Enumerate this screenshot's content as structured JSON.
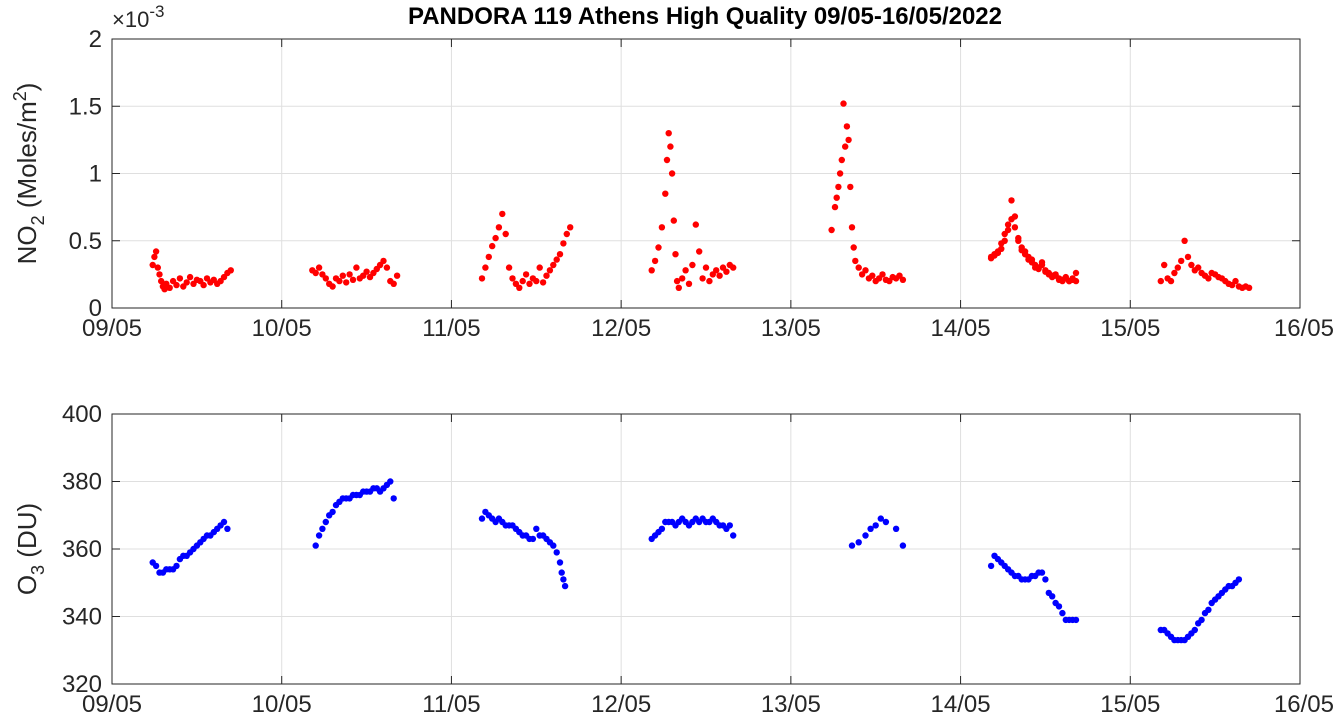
{
  "figure": {
    "title": "PANDORA 119 Athens High Quality 09/05-16/05/2022"
  },
  "chart_data": [
    {
      "type": "scatter",
      "ylabel": "NO₂ (Moles/m²)",
      "ylabel_main": "NO",
      "ylabel_sub": "2",
      "ylabel_rest": " (Moles/m",
      "ylabel_sup": "2",
      "ylabel_end": ")",
      "exponent_label": "×10",
      "exponent_sup": "-3",
      "x_ticks": [
        "09/05",
        "10/05",
        "11/05",
        "12/05",
        "13/05",
        "14/05",
        "15/05",
        "16/05"
      ],
      "xlim_days": [
        0,
        7
      ],
      "y_ticks": [
        "0",
        "0.5",
        "1",
        "1.5",
        "2"
      ],
      "ylim": [
        0,
        2
      ],
      "grid": true,
      "color": "#ff0000",
      "series": [
        {
          "x": [
            0.24,
            0.25,
            0.26,
            0.27,
            0.28,
            0.29,
            0.3,
            0.31,
            0.32,
            0.34,
            0.36,
            0.38,
            0.4,
            0.42,
            0.44,
            0.46,
            0.48,
            0.5,
            0.52,
            0.54,
            0.56,
            0.58,
            0.6,
            0.62,
            0.64,
            0.66,
            0.68,
            0.7
          ],
          "y": [
            0.32,
            0.38,
            0.42,
            0.3,
            0.25,
            0.2,
            0.16,
            0.14,
            0.18,
            0.15,
            0.2,
            0.17,
            0.22,
            0.16,
            0.19,
            0.23,
            0.18,
            0.21,
            0.2,
            0.17,
            0.22,
            0.19,
            0.21,
            0.18,
            0.2,
            0.23,
            0.26,
            0.28
          ]
        },
        {
          "x": [
            1.18,
            1.2,
            1.22,
            1.24,
            1.26,
            1.28,
            1.3,
            1.32,
            1.34,
            1.36,
            1.38,
            1.4,
            1.42,
            1.44,
            1.46,
            1.48,
            1.5,
            1.52,
            1.54,
            1.56,
            1.58,
            1.6,
            1.62,
            1.64,
            1.66,
            1.68
          ],
          "y": [
            0.28,
            0.26,
            0.3,
            0.25,
            0.22,
            0.18,
            0.16,
            0.22,
            0.2,
            0.24,
            0.19,
            0.25,
            0.21,
            0.3,
            0.22,
            0.24,
            0.27,
            0.23,
            0.26,
            0.29,
            0.32,
            0.35,
            0.3,
            0.2,
            0.18,
            0.24
          ]
        },
        {
          "x": [
            2.18,
            2.2,
            2.22,
            2.24,
            2.26,
            2.28,
            2.3,
            2.32,
            2.34,
            2.36,
            2.38,
            2.4,
            2.42,
            2.44,
            2.46,
            2.48,
            2.5,
            2.52,
            2.54,
            2.56,
            2.58,
            2.6,
            2.62,
            2.64,
            2.66,
            2.68,
            2.7
          ],
          "y": [
            0.22,
            0.3,
            0.38,
            0.46,
            0.52,
            0.6,
            0.7,
            0.55,
            0.3,
            0.22,
            0.18,
            0.15,
            0.2,
            0.25,
            0.18,
            0.22,
            0.2,
            0.3,
            0.19,
            0.24,
            0.28,
            0.32,
            0.36,
            0.4,
            0.48,
            0.55,
            0.6
          ]
        },
        {
          "x": [
            3.18,
            3.2,
            3.22,
            3.24,
            3.26,
            3.27,
            3.28,
            3.29,
            3.3,
            3.31,
            3.32,
            3.33,
            3.34,
            3.36,
            3.38,
            3.4,
            3.42,
            3.44,
            3.46,
            3.48,
            3.5,
            3.52,
            3.54,
            3.56,
            3.58,
            3.6,
            3.62,
            3.64,
            3.66
          ],
          "y": [
            0.28,
            0.35,
            0.45,
            0.6,
            0.85,
            1.1,
            1.3,
            1.2,
            1.0,
            0.65,
            0.4,
            0.2,
            0.15,
            0.22,
            0.28,
            0.18,
            0.32,
            0.62,
            0.42,
            0.22,
            0.3,
            0.2,
            0.25,
            0.28,
            0.24,
            0.3,
            0.27,
            0.32,
            0.3
          ]
        },
        {
          "x": [
            4.24,
            4.26,
            4.27,
            4.28,
            4.29,
            4.3,
            4.31,
            4.32,
            4.33,
            4.34,
            4.35,
            4.36,
            4.37,
            4.38,
            4.4,
            4.42,
            4.44,
            4.46,
            4.48,
            4.5,
            4.52,
            4.54,
            4.56,
            4.58,
            4.6,
            4.62,
            4.64,
            4.66
          ],
          "y": [
            0.58,
            0.75,
            0.82,
            0.9,
            1.0,
            1.1,
            1.52,
            1.2,
            1.35,
            1.25,
            0.9,
            0.6,
            0.45,
            0.35,
            0.3,
            0.25,
            0.28,
            0.22,
            0.24,
            0.2,
            0.22,
            0.25,
            0.21,
            0.2,
            0.23,
            0.22,
            0.24,
            0.21
          ]
        },
        {
          "x": [
            5.18,
            5.2,
            5.22,
            5.24,
            5.26,
            5.28,
            5.3,
            5.32,
            5.34,
            5.36,
            5.38,
            5.4,
            5.42,
            5.44,
            5.46,
            5.48,
            5.5,
            5.52,
            5.54,
            5.56,
            5.58,
            5.6,
            5.62,
            5.64,
            5.66,
            5.68
          ],
          "y": [
            0.38,
            0.4,
            0.42,
            0.48,
            0.55,
            0.62,
            0.8,
            0.68,
            0.52,
            0.45,
            0.42,
            0.38,
            0.36,
            0.32,
            0.3,
            0.34,
            0.28,
            0.26,
            0.24,
            0.25,
            0.22,
            0.21,
            0.23,
            0.2,
            0.22,
            0.26
          ]
        },
        {
          "x": [
            5.18,
            5.2,
            5.22,
            5.24,
            5.26,
            5.28,
            5.3,
            5.32,
            5.34,
            5.36,
            5.38,
            5.4,
            5.42,
            5.44,
            5.46,
            5.48,
            5.5,
            5.52,
            5.54,
            5.56,
            5.58,
            5.6,
            5.62,
            5.64,
            5.66,
            5.68
          ],
          "y": [
            0.37,
            0.39,
            0.41,
            0.44,
            0.5,
            0.58,
            0.66,
            0.6,
            0.5,
            0.43,
            0.4,
            0.36,
            0.34,
            0.3,
            0.29,
            0.32,
            0.27,
            0.25,
            0.23,
            0.24,
            0.21,
            0.2,
            0.22,
            0.2,
            0.21,
            0.2
          ]
        },
        {
          "x": [
            6.18,
            6.2,
            6.22,
            6.24,
            6.26,
            6.28,
            6.3,
            6.32,
            6.34,
            6.36,
            6.38,
            6.4,
            6.42,
            6.44,
            6.46,
            6.48,
            6.5,
            6.52,
            6.54,
            6.56,
            6.58,
            6.6,
            6.62,
            6.64,
            6.66,
            6.68,
            6.7
          ],
          "y": [
            0.2,
            0.32,
            0.22,
            0.2,
            0.26,
            0.3,
            0.35,
            0.5,
            0.38,
            0.32,
            0.28,
            0.3,
            0.26,
            0.24,
            0.22,
            0.26,
            0.25,
            0.23,
            0.22,
            0.2,
            0.18,
            0.17,
            0.2,
            0.16,
            0.15,
            0.16,
            0.15
          ]
        }
      ]
    },
    {
      "type": "scatter",
      "ylabel": "O₃ (DU)",
      "ylabel_main": "O",
      "ylabel_sub": "3",
      "ylabel_rest": " (DU)",
      "x_ticks": [
        "09/05",
        "10/05",
        "11/05",
        "12/05",
        "13/05",
        "14/05",
        "15/05",
        "16/05"
      ],
      "xlim_days": [
        0,
        7
      ],
      "y_ticks": [
        "320",
        "340",
        "360",
        "380",
        "400"
      ],
      "ylim": [
        320,
        400
      ],
      "grid": true,
      "color": "#0000ff",
      "series": [
        {
          "x": [
            0.24,
            0.26,
            0.28,
            0.3,
            0.32,
            0.34,
            0.36,
            0.38,
            0.4,
            0.42,
            0.44,
            0.46,
            0.48,
            0.5,
            0.52,
            0.54,
            0.56,
            0.58,
            0.6,
            0.62,
            0.64,
            0.66,
            0.68
          ],
          "y": [
            356,
            355,
            353,
            353,
            354,
            354,
            354,
            355,
            357,
            358,
            358,
            359,
            360,
            361,
            362,
            363,
            364,
            364,
            365,
            366,
            367,
            368,
            366
          ]
        },
        {
          "x": [
            1.2,
            1.22,
            1.24,
            1.26,
            1.28,
            1.3,
            1.32,
            1.34,
            1.36,
            1.38,
            1.4,
            1.42,
            1.44,
            1.46,
            1.48,
            1.5,
            1.52,
            1.54,
            1.56,
            1.58,
            1.6,
            1.62,
            1.64,
            1.66
          ],
          "y": [
            361,
            364,
            366,
            368,
            370,
            371,
            373,
            374,
            375,
            375,
            375,
            376,
            376,
            376,
            377,
            377,
            377,
            378,
            378,
            377,
            378,
            379,
            380,
            375
          ]
        },
        {
          "x": [
            2.18,
            2.2,
            2.22,
            2.24,
            2.26,
            2.28,
            2.3,
            2.32,
            2.34,
            2.36,
            2.38,
            2.4,
            2.42,
            2.44,
            2.46,
            2.48,
            2.5,
            2.52,
            2.54,
            2.56,
            2.58,
            2.6,
            2.62,
            2.64,
            2.65,
            2.66,
            2.67
          ],
          "y": [
            369,
            371,
            370,
            369,
            368,
            369,
            368,
            367,
            367,
            367,
            366,
            365,
            364,
            364,
            363,
            363,
            366,
            364,
            364,
            363,
            362,
            361,
            359,
            356,
            353,
            351,
            349
          ]
        },
        {
          "x": [
            3.18,
            3.2,
            3.22,
            3.24,
            3.26,
            3.28,
            3.3,
            3.32,
            3.34,
            3.36,
            3.38,
            3.4,
            3.42,
            3.44,
            3.46,
            3.48,
            3.5,
            3.52,
            3.54,
            3.56,
            3.58,
            3.6,
            3.62,
            3.64,
            3.66
          ],
          "y": [
            363,
            364,
            365,
            366,
            368,
            368,
            368,
            367,
            368,
            369,
            368,
            367,
            368,
            369,
            368,
            369,
            368,
            368,
            369,
            368,
            367,
            367,
            366,
            367,
            364
          ]
        },
        {
          "x": [
            4.36,
            4.4,
            4.44,
            4.47,
            4.5,
            4.53,
            4.56,
            4.62,
            4.66
          ],
          "y": [
            361,
            362,
            364,
            366,
            367,
            369,
            368,
            366,
            361
          ]
        },
        {
          "x": [
            5.18,
            5.2,
            5.22,
            5.24,
            5.26,
            5.28,
            5.3,
            5.32,
            5.34,
            5.36,
            5.38,
            5.4,
            5.42,
            5.44,
            5.46,
            5.48,
            5.5,
            5.52,
            5.54,
            5.56,
            5.58,
            5.6,
            5.62,
            5.64,
            5.66,
            5.68
          ],
          "y": [
            355,
            358,
            357,
            356,
            355,
            354,
            353,
            352,
            352,
            351,
            351,
            351,
            352,
            352,
            353,
            353,
            351,
            347,
            346,
            344,
            343,
            341,
            339,
            339,
            339,
            339
          ]
        },
        {
          "x": [
            6.18,
            6.2,
            6.22,
            6.24,
            6.26,
            6.28,
            6.3,
            6.32,
            6.34,
            6.36,
            6.38,
            6.4,
            6.42,
            6.44,
            6.46,
            6.48,
            6.5,
            6.52,
            6.54,
            6.56,
            6.58,
            6.6,
            6.62,
            6.64
          ],
          "y": [
            336,
            336,
            335,
            334,
            333,
            333,
            333,
            333,
            334,
            335,
            336,
            338,
            339,
            341,
            342,
            344,
            345,
            346,
            347,
            348,
            349,
            349,
            350,
            351
          ]
        }
      ]
    }
  ]
}
